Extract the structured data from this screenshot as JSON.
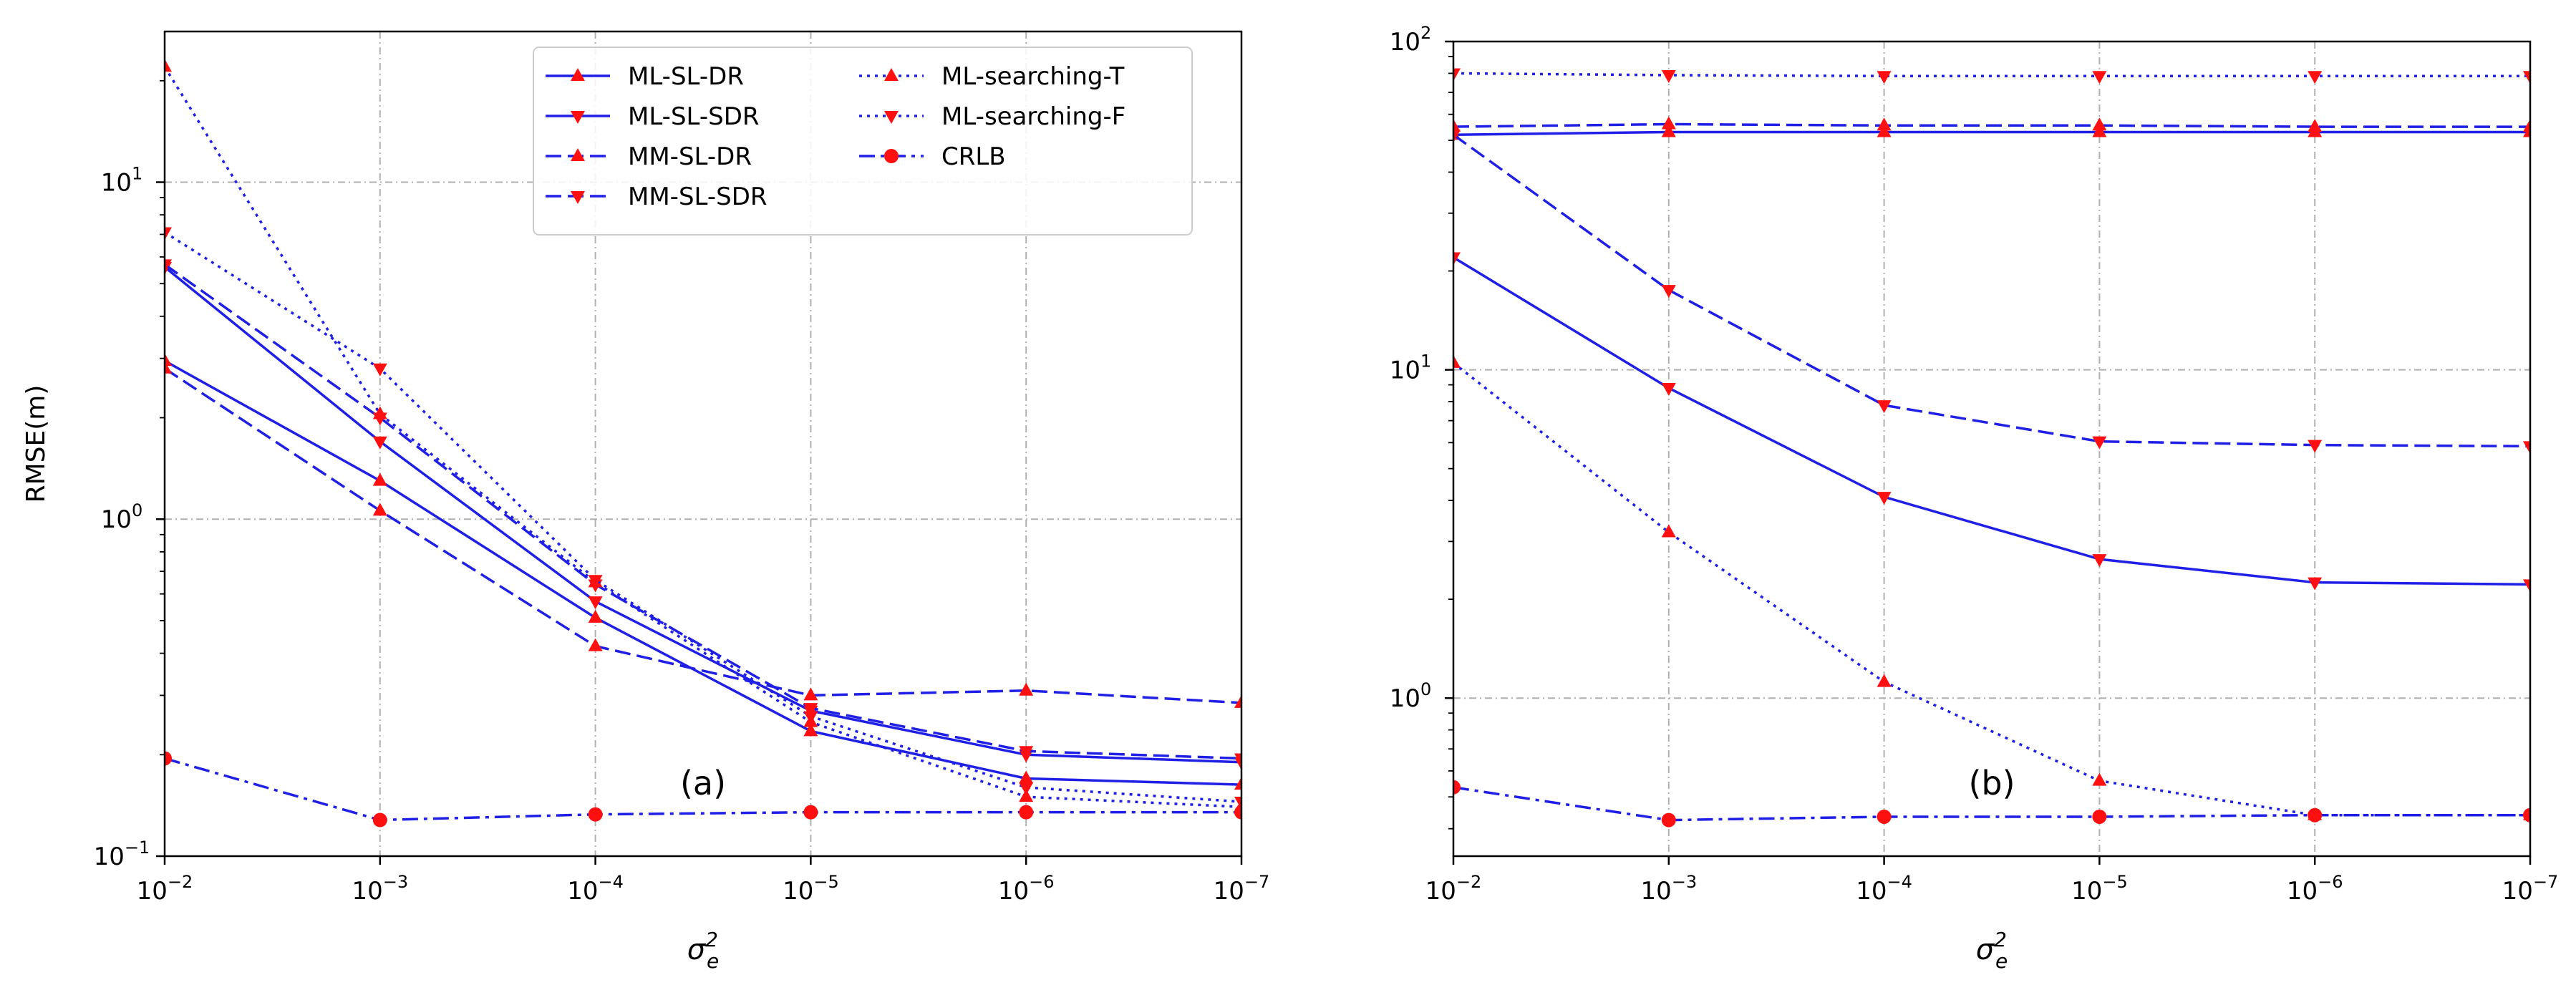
{
  "chart_data": [
    {
      "type": "line",
      "panel_label": "(a)",
      "xlabel_base": "σ",
      "xlabel_sup": "2",
      "xlabel_sub": "e",
      "ylabel": "RMSE(m)",
      "yscale": "log",
      "ylim": [
        0.1,
        28
      ],
      "xlim_exponent": [
        -2,
        -7
      ],
      "grid": true,
      "legend_position": "top-center",
      "x_exponents": [
        -2,
        -3,
        -4,
        -5,
        -6,
        -7
      ],
      "x_tick_labels": [
        {
          "base": "10",
          "exp": "−2"
        },
        {
          "base": "10",
          "exp": "−3"
        },
        {
          "base": "10",
          "exp": "−4"
        },
        {
          "base": "10",
          "exp": "−5"
        },
        {
          "base": "10",
          "exp": "−6"
        },
        {
          "base": "10",
          "exp": "−7"
        }
      ],
      "y_tick_labels": [
        {
          "value": 0.1,
          "base": "10",
          "exp": "−1"
        },
        {
          "value": 1,
          "base": "10",
          "exp": "0"
        },
        {
          "value": 10,
          "base": "10",
          "exp": "1"
        }
      ],
      "series": [
        {
          "name": "ML-SL-DR",
          "linestyle": "solid",
          "marker": "triangle-up",
          "values": [
            2.95,
            1.3,
            0.51,
            0.235,
            0.17,
            0.163
          ]
        },
        {
          "name": "ML-SL-SDR",
          "linestyle": "solid",
          "marker": "triangle-down",
          "values": [
            5.6,
            1.7,
            0.57,
            0.27,
            0.2,
            0.19
          ]
        },
        {
          "name": "MM-SL-DR",
          "linestyle": "dashed",
          "marker": "triangle-up",
          "values": [
            2.8,
            1.06,
            0.42,
            0.3,
            0.31,
            0.285
          ]
        },
        {
          "name": "MM-SL-SDR",
          "linestyle": "dashed",
          "marker": "triangle-down",
          "values": [
            5.7,
            2.0,
            0.64,
            0.275,
            0.205,
            0.195
          ]
        },
        {
          "name": "ML-searching-T",
          "linestyle": "dotted",
          "marker": "triangle-up",
          "values": [
            22,
            2.05,
            0.65,
            0.25,
            0.15,
            0.14
          ]
        },
        {
          "name": "ML-searching-F",
          "linestyle": "dotted",
          "marker": "triangle-down",
          "values": [
            7.1,
            2.8,
            0.66,
            0.26,
            0.16,
            0.145
          ]
        },
        {
          "name": "CRLB",
          "linestyle": "dashdot",
          "marker": "circle",
          "values": [
            0.195,
            0.128,
            0.133,
            0.135,
            0.135,
            0.135
          ]
        }
      ]
    },
    {
      "type": "line",
      "panel_label": "(b)",
      "xlabel_base": "σ",
      "xlabel_sup": "2",
      "xlabel_sub": "e",
      "ylabel": "",
      "yscale": "log",
      "ylim": [
        0.33,
        100
      ],
      "xlim_exponent": [
        -2,
        -7
      ],
      "grid": true,
      "x_exponents": [
        -2,
        -3,
        -4,
        -5,
        -6,
        -7
      ],
      "x_tick_labels": [
        {
          "base": "10",
          "exp": "−2"
        },
        {
          "base": "10",
          "exp": "−3"
        },
        {
          "base": "10",
          "exp": "−4"
        },
        {
          "base": "10",
          "exp": "−5"
        },
        {
          "base": "10",
          "exp": "−6"
        },
        {
          "base": "10",
          "exp": "−7"
        }
      ],
      "y_tick_labels": [
        {
          "value": 1,
          "base": "10",
          "exp": "0"
        },
        {
          "value": 10,
          "base": "10",
          "exp": "1"
        },
        {
          "value": 100,
          "base": "10",
          "exp": "2"
        }
      ],
      "series": [
        {
          "linestyle": "solid",
          "marker": "triangle-up",
          "values": [
            52,
            53,
            53,
            53,
            53,
            53
          ]
        },
        {
          "linestyle": "solid",
          "marker": "triangle-down",
          "values": [
            22,
            8.8,
            4.1,
            2.65,
            2.25,
            2.22
          ]
        },
        {
          "linestyle": "dashed",
          "marker": "triangle-up",
          "values": [
            55,
            56,
            55.5,
            55.5,
            55,
            55
          ]
        },
        {
          "linestyle": "dashed",
          "marker": "triangle-down",
          "values": [
            52,
            17.5,
            7.8,
            6.05,
            5.9,
            5.85
          ]
        },
        {
          "linestyle": "dotted",
          "marker": "triangle-up",
          "values": [
            10.5,
            3.2,
            1.12,
            0.56,
            0.44,
            0.44
          ]
        },
        {
          "linestyle": "dotted",
          "marker": "triangle-down",
          "values": [
            80,
            79,
            78.5,
            78.5,
            78.5,
            78.5
          ]
        },
        {
          "linestyle": "dashdot",
          "marker": "circle",
          "values": [
            0.535,
            0.425,
            0.435,
            0.435,
            0.44,
            0.44
          ]
        }
      ]
    }
  ],
  "colors": {
    "line": "#1f1fe6",
    "marker": "#ff1010",
    "grid": "#b0b0b0",
    "axis": "#000000"
  }
}
